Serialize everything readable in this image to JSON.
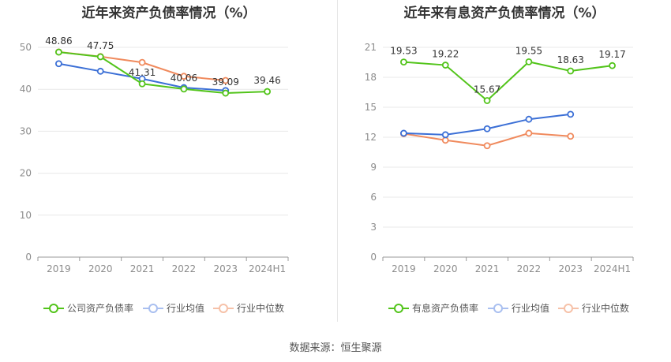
{
  "colors": {
    "company": "#52c41a",
    "industry_avg": "#3b6fd6",
    "industry_median": "#f08a5d",
    "grid": "#e8e8e8",
    "axis_text": "#8c8c8c",
    "label_text": "#333333"
  },
  "legend": {
    "industry_avg": "行业均值",
    "industry_median": "行业中位数"
  },
  "footer": {
    "source": "数据来源：恒生聚源"
  },
  "chart_data": [
    {
      "id": "left",
      "type": "line",
      "title": "近年来资产负债率情况（%）",
      "categories": [
        "2019",
        "2020",
        "2021",
        "2022",
        "2023",
        "2024H1"
      ],
      "ylim": [
        0,
        50
      ],
      "yticks": [
        0,
        10,
        20,
        30,
        40,
        50
      ],
      "legend_main": "公司资产负债率",
      "series": [
        {
          "key": "company",
          "name": "公司资产负债率",
          "values": [
            48.86,
            47.75,
            41.31,
            40.06,
            39.09,
            39.46
          ],
          "labels": [
            "48.86",
            "47.75",
            "41.31",
            "40.06",
            "39.09",
            "39.46"
          ]
        },
        {
          "key": "industry_avg",
          "name": "行业均值",
          "values": [
            46.1,
            44.3,
            42.5,
            40.4,
            39.7,
            null
          ]
        },
        {
          "key": "industry_median",
          "name": "行业中位数",
          "values": [
            48.9,
            47.8,
            46.4,
            43.1,
            42.1,
            null
          ]
        }
      ]
    },
    {
      "id": "right",
      "type": "line",
      "title": "近年来有息资产负债率情况（%）",
      "categories": [
        "2019",
        "2020",
        "2021",
        "2022",
        "2023",
        "2024H1"
      ],
      "ylim": [
        0,
        21
      ],
      "yticks": [
        0,
        3,
        6,
        9,
        12,
        15,
        18,
        21
      ],
      "legend_main": "有息资产负债率",
      "series": [
        {
          "key": "company",
          "name": "有息资产负债率",
          "values": [
            19.53,
            19.22,
            15.67,
            19.55,
            18.63,
            19.17
          ],
          "labels": [
            "19.53",
            "19.22",
            "15.67",
            "19.55",
            "18.63",
            "19.17"
          ]
        },
        {
          "key": "industry_avg",
          "name": "行业均值",
          "values": [
            12.4,
            12.25,
            12.85,
            13.8,
            14.3,
            null
          ]
        },
        {
          "key": "industry_median",
          "name": "行业中位数",
          "values": [
            12.35,
            11.7,
            11.15,
            12.4,
            12.1,
            null
          ]
        }
      ]
    }
  ]
}
